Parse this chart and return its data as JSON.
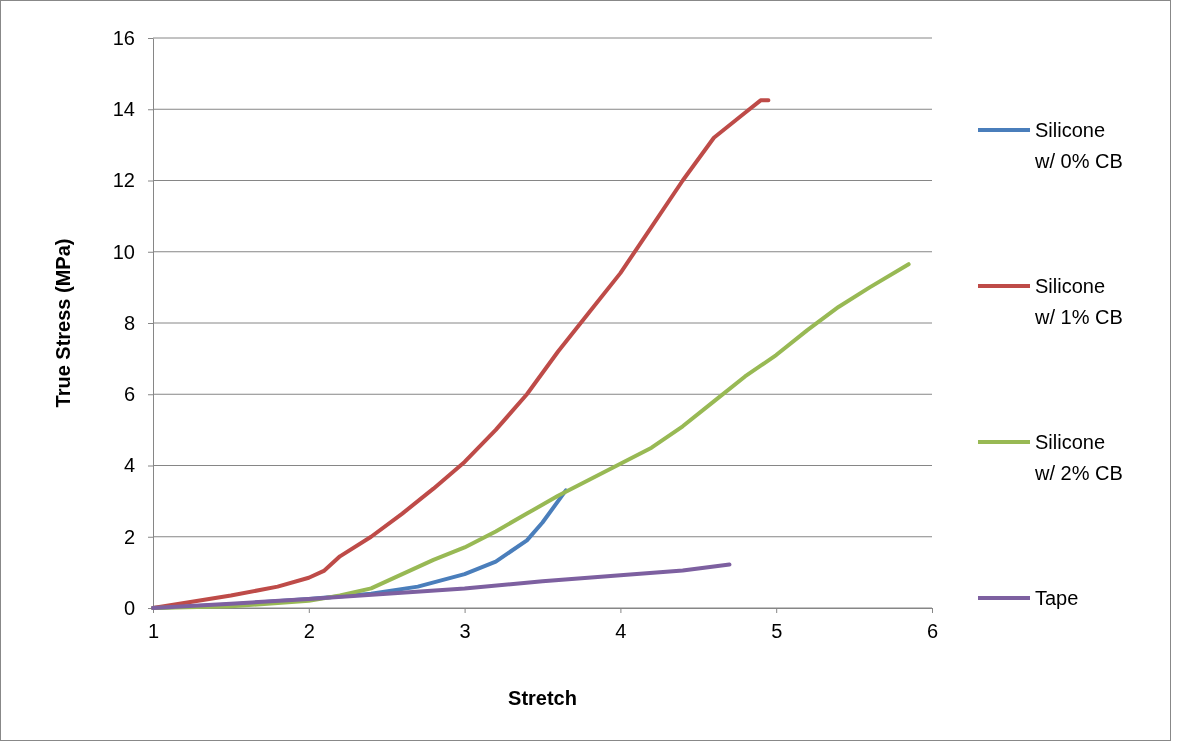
{
  "chart_data": {
    "type": "line",
    "xlabel": "Stretch",
    "ylabel": "True Stress (MPa)",
    "xlim": [
      1,
      6
    ],
    "xticks": [
      1,
      2,
      3,
      4,
      5,
      6
    ],
    "ylim": [
      0,
      16
    ],
    "yticks": [
      0,
      2,
      4,
      6,
      8,
      10,
      12,
      14,
      16
    ],
    "grid": "y",
    "legend": "right",
    "marker": "none",
    "line_style": "solid",
    "series": [
      {
        "name": "Silicone w/ 0% CB",
        "color": "#4a7ebb",
        "x": [
          1,
          1.5,
          2,
          2.4,
          2.7,
          3,
          3.2,
          3.4,
          3.5,
          3.6,
          3.65
        ],
        "values": [
          0,
          0.1,
          0.25,
          0.4,
          0.6,
          0.95,
          1.3,
          1.9,
          2.4,
          3.0,
          3.3
        ]
      },
      {
        "name": "Silicone w/ 1% CB",
        "color": "#be4b48",
        "x": [
          1,
          1.5,
          1.8,
          2,
          2.1,
          2.2,
          2.4,
          2.6,
          2.8,
          3,
          3.2,
          3.4,
          3.6,
          3.8,
          4,
          4.2,
          4.4,
          4.6,
          4.8,
          4.9,
          4.95
        ],
        "values": [
          0,
          0.35,
          0.6,
          0.85,
          1.05,
          1.45,
          2.0,
          2.65,
          3.35,
          4.1,
          5.0,
          6.0,
          7.2,
          8.3,
          9.4,
          10.7,
          12.0,
          13.2,
          13.9,
          14.25,
          14.25
        ]
      },
      {
        "name": "Silicone w/ 2% CB",
        "color": "#98b954",
        "x": [
          1,
          1.5,
          2,
          2.2,
          2.4,
          2.6,
          2.8,
          3,
          3.2,
          3.4,
          3.6,
          3.8,
          4,
          4.2,
          4.4,
          4.6,
          4.8,
          5,
          5.2,
          5.4,
          5.6,
          5.85
        ],
        "values": [
          0,
          0.05,
          0.2,
          0.35,
          0.55,
          0.95,
          1.35,
          1.7,
          2.15,
          2.65,
          3.15,
          3.6,
          4.05,
          4.5,
          5.1,
          5.8,
          6.5,
          7.1,
          7.8,
          8.45,
          9.0,
          9.65
        ]
      },
      {
        "name": "Tape",
        "color": "#7d60a0",
        "x": [
          1,
          1.5,
          2,
          2.5,
          3,
          3.5,
          4,
          4.4,
          4.7
        ],
        "values": [
          0,
          0.12,
          0.25,
          0.4,
          0.55,
          0.75,
          0.92,
          1.05,
          1.22
        ]
      }
    ]
  }
}
